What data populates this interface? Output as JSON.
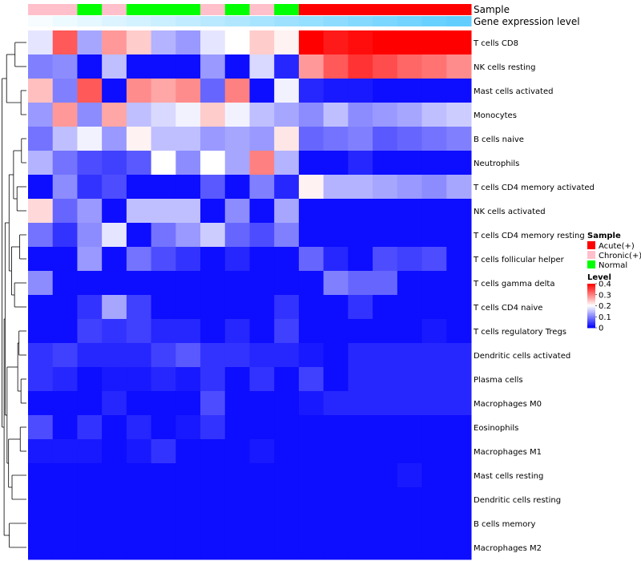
{
  "chart_data": {
    "type": "heatmap",
    "title": "",
    "xlabel": "",
    "ylabel": "",
    "columns": 18,
    "rows": [
      "T cells CD8",
      "NK cells resting",
      "Mast cells activated",
      "Monocytes",
      "B cells naive",
      "Neutrophils",
      "T cells CD4 memory activated",
      "NK cells activated",
      "T cells CD4 memory resting",
      "T cells follicular helper",
      "T cells gamma delta",
      "T cells CD4 naive",
      "T cells regulatory  Tregs",
      "Dendritic cells activated",
      "Plasma cells",
      "Macrophages M0",
      "Eosinophils",
      "Macrophages M1",
      "Mast cells resting",
      "Dendritic cells resting",
      "B cells memory",
      "Macrophages M2"
    ],
    "values": [
      [
        0.18,
        0.33,
        0.13,
        0.28,
        0.24,
        0.14,
        0.12,
        0.18,
        0.2,
        0.24,
        0.21,
        0.4,
        0.38,
        0.39,
        0.4,
        0.4,
        0.4,
        0.4
      ],
      [
        0.1,
        0.11,
        0.01,
        0.15,
        0.01,
        0.01,
        0.01,
        0.12,
        0.01,
        0.17,
        0.03,
        0.28,
        0.33,
        0.36,
        0.34,
        0.32,
        0.31,
        0.29
      ],
      [
        0.25,
        0.1,
        0.33,
        0.01,
        0.29,
        0.27,
        0.29,
        0.08,
        0.3,
        0.01,
        0.19,
        0.03,
        0.02,
        0.02,
        0.01,
        0.01,
        0.01,
        0.01
      ],
      [
        0.12,
        0.28,
        0.11,
        0.27,
        0.15,
        0.17,
        0.19,
        0.24,
        0.19,
        0.15,
        0.13,
        0.11,
        0.15,
        0.11,
        0.12,
        0.13,
        0.15,
        0.16
      ],
      [
        0.09,
        0.15,
        0.19,
        0.12,
        0.21,
        0.15,
        0.15,
        0.12,
        0.13,
        0.12,
        0.22,
        0.08,
        0.09,
        0.1,
        0.07,
        0.08,
        0.09,
        0.1
      ],
      [
        0.14,
        0.09,
        0.06,
        0.05,
        0.07,
        0.2,
        0.11,
        0.2,
        0.13,
        0.3,
        0.14,
        0.01,
        0.01,
        0.03,
        0.01,
        0.01,
        0.01,
        0.01
      ],
      [
        0.01,
        0.11,
        0.04,
        0.06,
        0.01,
        0.01,
        0.01,
        0.07,
        0.01,
        0.1,
        0.03,
        0.21,
        0.14,
        0.14,
        0.13,
        0.12,
        0.11,
        0.13
      ],
      [
        0.23,
        0.08,
        0.12,
        0.01,
        0.15,
        0.15,
        0.15,
        0.01,
        0.11,
        0.01,
        0.13,
        0.01,
        0.01,
        0.01,
        0.01,
        0.01,
        0.01,
        0.01
      ],
      [
        0.09,
        0.04,
        0.11,
        0.18,
        0.01,
        0.09,
        0.12,
        0.16,
        0.08,
        0.06,
        0.1,
        0.01,
        0.01,
        0.01,
        0.01,
        0.01,
        0.01,
        0.01
      ],
      [
        0.01,
        0.01,
        0.12,
        0.01,
        0.09,
        0.06,
        0.04,
        0.01,
        0.03,
        0.01,
        0.01,
        0.08,
        0.03,
        0.01,
        0.06,
        0.05,
        0.06,
        0.01
      ],
      [
        0.11,
        0.01,
        0.01,
        0.01,
        0.01,
        0.01,
        0.01,
        0.01,
        0.01,
        0.01,
        0.01,
        0.01,
        0.1,
        0.08,
        0.08,
        0.01,
        0.01,
        0.01
      ],
      [
        0.01,
        0.01,
        0.04,
        0.13,
        0.05,
        0.01,
        0.01,
        0.01,
        0.01,
        0.01,
        0.04,
        0.01,
        0.01,
        0.04,
        0.01,
        0.01,
        0.01,
        0.01
      ],
      [
        0.01,
        0.01,
        0.05,
        0.04,
        0.05,
        0.03,
        0.03,
        0.01,
        0.03,
        0.01,
        0.05,
        0.01,
        0.01,
        0.01,
        0.01,
        0.01,
        0.02,
        0.01
      ],
      [
        0.04,
        0.05,
        0.03,
        0.03,
        0.03,
        0.05,
        0.07,
        0.04,
        0.04,
        0.03,
        0.03,
        0.02,
        0.01,
        0.03,
        0.03,
        0.03,
        0.03,
        0.03
      ],
      [
        0.04,
        0.03,
        0.01,
        0.02,
        0.02,
        0.03,
        0.02,
        0.04,
        0.01,
        0.04,
        0.01,
        0.05,
        0.01,
        0.03,
        0.03,
        0.03,
        0.03,
        0.03
      ],
      [
        0.01,
        0.01,
        0.01,
        0.03,
        0.01,
        0.01,
        0.01,
        0.06,
        0.01,
        0.01,
        0.01,
        0.02,
        0.03,
        0.03,
        0.03,
        0.03,
        0.03,
        0.03
      ],
      [
        0.06,
        0.01,
        0.04,
        0.01,
        0.03,
        0.01,
        0.02,
        0.04,
        0.01,
        0.01,
        0.01,
        0.01,
        0.01,
        0.01,
        0.01,
        0.01,
        0.01,
        0.01
      ],
      [
        0.02,
        0.02,
        0.02,
        0.01,
        0.02,
        0.04,
        0.01,
        0.01,
        0.01,
        0.02,
        0.01,
        0.01,
        0.01,
        0.01,
        0.01,
        0.01,
        0.01,
        0.01
      ],
      [
        0.01,
        0.01,
        0.01,
        0.01,
        0.01,
        0.01,
        0.01,
        0.01,
        0.01,
        0.01,
        0.01,
        0.01,
        0.01,
        0.01,
        0.01,
        0.02,
        0.01,
        0.01
      ],
      [
        0.01,
        0.01,
        0.01,
        0.01,
        0.01,
        0.01,
        0.01,
        0.01,
        0.01,
        0.01,
        0.01,
        0.01,
        0.01,
        0.01,
        0.01,
        0.01,
        0.01,
        0.01
      ],
      [
        0.01,
        0.01,
        0.01,
        0.01,
        0.01,
        0.01,
        0.01,
        0.01,
        0.01,
        0.01,
        0.01,
        0.01,
        0.01,
        0.01,
        0.01,
        0.01,
        0.01,
        0.01
      ],
      [
        0.01,
        0.01,
        0.01,
        0.01,
        0.01,
        0.01,
        0.01,
        0.01,
        0.01,
        0.01,
        0.01,
        0.01,
        0.01,
        0.01,
        0.01,
        0.01,
        0.01,
        0.01
      ]
    ],
    "color_scale": {
      "min": 0,
      "max": 0.4,
      "colors": [
        "#0000ff",
        "#ffffff",
        "#ff0000"
      ]
    },
    "annotations": {
      "sample": {
        "label": "Sample",
        "values": [
          "Chronic(+)",
          "Chronic(+)",
          "Normal",
          "Chronic(+)",
          "Normal",
          "Normal",
          "Normal",
          "Chronic(+)",
          "Normal",
          "Chronic(+)",
          "Normal",
          "Acute(+)",
          "Acute(+)",
          "Acute(+)",
          "Acute(+)",
          "Acute(+)",
          "Acute(+)",
          "Acute(+)"
        ]
      },
      "gene_expression_level": {
        "label": "Gene expression level",
        "values": [
          0.05,
          0.1,
          0.15,
          0.2,
          0.25,
          0.3,
          0.35,
          0.4,
          0.45,
          0.5,
          0.55,
          0.6,
          0.65,
          0.7,
          0.75,
          0.8,
          0.85,
          0.9
        ],
        "colors": [
          "#ffffff",
          "#4fc9ff"
        ]
      }
    },
    "legend": {
      "placement": "right",
      "sample": {
        "title": "Sample",
        "entries": [
          {
            "label": "Acute(+)",
            "color": "#ff0000"
          },
          {
            "label": "Chronic(+)",
            "color": "#ffc0cb"
          },
          {
            "label": "Normal",
            "color": "#00ff00"
          }
        ]
      },
      "level": {
        "title": "Level",
        "ticks": [
          "0.4",
          "0.3",
          "0.2",
          "0.1",
          "0"
        ],
        "tick_values": [
          0.4,
          0.3,
          0.2,
          0.1,
          0
        ]
      }
    },
    "dendrogram": {
      "side": "left",
      "merges": [
        [
          0,
          1,
          0.46
        ],
        [
          2,
          3,
          0.22
        ],
        [
          4,
          5,
          0.2
        ],
        [
          6,
          7,
          0.38
        ],
        [
          8,
          9,
          0.27
        ],
        [
          10,
          11,
          0.48
        ],
        [
          12,
          13,
          0.3
        ],
        [
          14,
          15,
          0.22
        ],
        [
          16,
          17,
          0.25
        ],
        [
          18,
          19,
          0.58
        ],
        [
          20,
          21,
          0.69
        ]
      ]
    }
  }
}
